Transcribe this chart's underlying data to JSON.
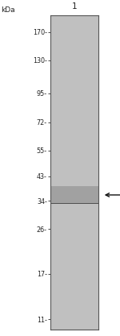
{
  "lane_label": "1",
  "kda_label": "kDa",
  "markers": [
    170,
    130,
    95,
    72,
    55,
    43,
    34,
    26,
    17,
    11
  ],
  "marker_labels": [
    "170-",
    "130-",
    "95-",
    "72-",
    "55-",
    "43-",
    "34-",
    "26-",
    "17-",
    "11-"
  ],
  "band_kda": 36,
  "gel_bg_color": "#c0c0c0",
  "gel_border_color": "#555555",
  "arrow_color": "#111111",
  "label_color": "#222222",
  "fig_bg_color": "#ffffff",
  "figsize": [
    1.5,
    4.17
  ],
  "dpi": 100,
  "log_min": 10,
  "log_max": 200
}
